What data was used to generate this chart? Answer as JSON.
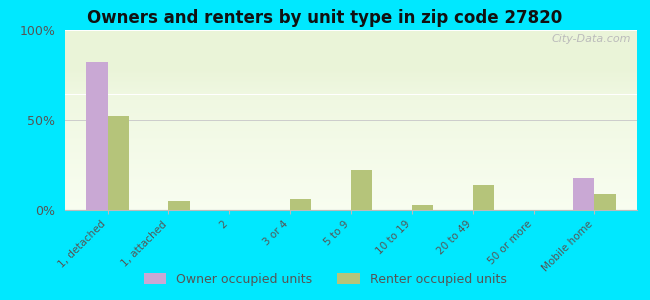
{
  "title": "Owners and renters by unit type in zip code 27820",
  "categories": [
    "1, detached",
    "1, attached",
    "2",
    "3 or 4",
    "5 to 9",
    "10 to 19",
    "20 to 49",
    "50 or more",
    "Mobile home"
  ],
  "owner_values": [
    82,
    0,
    0,
    0,
    0,
    0,
    0,
    0,
    18
  ],
  "renter_values": [
    52,
    5,
    0,
    6,
    22,
    3,
    14,
    0,
    9
  ],
  "owner_color": "#c9a8d4",
  "renter_color": "#b5c47a",
  "background_top": "#eaf4d8",
  "background_bottom": "#f8fdf0",
  "outer_background": "#00e8ff",
  "ylim": [
    0,
    100
  ],
  "yticks": [
    0,
    50,
    100
  ],
  "ytick_labels": [
    "0%",
    "50%",
    "100%"
  ],
  "bar_width": 0.35,
  "legend_owner": "Owner occupied units",
  "legend_renter": "Renter occupied units",
  "watermark": "City-Data.com"
}
